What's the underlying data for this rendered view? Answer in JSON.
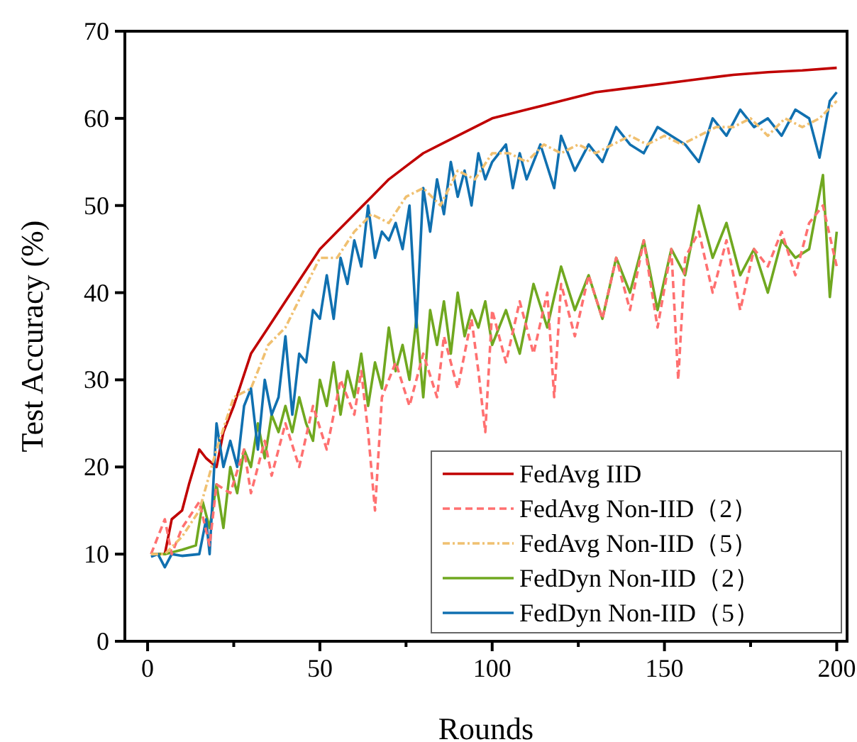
{
  "chart_data": {
    "type": "line",
    "xlabel": "Rounds",
    "ylabel": "Test Accuracy (%)",
    "xlim": [
      -6.6,
      203
    ],
    "ylim": [
      0,
      70
    ],
    "xticks": [
      0,
      {
        "value": 25,
        "label": null
      },
      50,
      {
        "value": 75,
        "label": null
      },
      100,
      {
        "value": 125,
        "label": null
      },
      150,
      {
        "value": 175,
        "label": null
      },
      200
    ],
    "yticks": [
      0,
      10,
      20,
      30,
      40,
      50,
      60,
      70
    ],
    "grid": false,
    "legend": "bottom right",
    "marker": "none",
    "series": [
      {
        "name": "FedAvg IID",
        "color": "#c00000",
        "line_style": "solid",
        "x": [
          1,
          5,
          7,
          10,
          12,
          15,
          17,
          20,
          22,
          25,
          30,
          35,
          40,
          45,
          50,
          55,
          60,
          65,
          70,
          75,
          80,
          85,
          90,
          95,
          100,
          110,
          120,
          130,
          140,
          150,
          160,
          170,
          180,
          190,
          200
        ],
        "values": [
          10,
          10,
          14,
          15,
          18,
          22,
          21,
          20,
          24,
          27,
          33,
          36,
          39,
          42,
          45,
          47,
          49,
          51,
          53,
          54.5,
          56,
          57,
          58,
          59,
          60,
          61,
          62,
          63,
          63.5,
          64,
          64.5,
          65,
          65.3,
          65.5,
          65.8
        ]
      },
      {
        "name": "FedAvg Non-IID（2）",
        "color": "#ff7070",
        "line_style": "dashed",
        "x": [
          1,
          5,
          7,
          10,
          15,
          18,
          20,
          24,
          28,
          30,
          34,
          36,
          40,
          44,
          48,
          52,
          56,
          60,
          62,
          64,
          66,
          68,
          72,
          76,
          80,
          84,
          86,
          90,
          94,
          96,
          98,
          100,
          104,
          108,
          112,
          116,
          118,
          120,
          124,
          128,
          132,
          136,
          140,
          144,
          148,
          152,
          154,
          156,
          160,
          164,
          168,
          172,
          176,
          180,
          184,
          188,
          192,
          196,
          200
        ],
        "values": [
          10,
          14,
          10,
          13,
          16,
          11,
          18,
          17,
          22,
          17,
          23,
          19,
          25,
          20,
          27,
          22,
          30,
          26,
          31,
          24,
          15,
          28,
          32,
          27,
          33,
          28,
          35,
          29,
          37,
          31,
          24,
          38,
          32,
          39,
          33,
          40,
          28,
          41,
          35,
          42,
          37,
          44,
          38,
          46,
          36,
          45,
          30,
          44,
          47,
          40,
          46,
          38,
          45,
          43,
          47,
          42,
          48,
          50,
          43
        ]
      },
      {
        "name": "FedAvg Non-IID（5）",
        "color": "#f0c070",
        "line_style": "dashdot",
        "x": [
          1,
          5,
          10,
          15,
          20,
          25,
          30,
          35,
          40,
          45,
          50,
          55,
          60,
          65,
          70,
          75,
          80,
          85,
          90,
          95,
          100,
          105,
          110,
          115,
          120,
          125,
          130,
          135,
          140,
          145,
          150,
          155,
          160,
          165,
          170,
          175,
          180,
          185,
          190,
          195,
          200
        ],
        "values": [
          10,
          10,
          12,
          15,
          22,
          28,
          29,
          34,
          36,
          40,
          44,
          44,
          47,
          49,
          48,
          51,
          52,
          50,
          54,
          53,
          56,
          56,
          55,
          57,
          56,
          57,
          56,
          57,
          58,
          57,
          58,
          57,
          58,
          59,
          59,
          60,
          58,
          60,
          59,
          60,
          62
        ]
      },
      {
        "name": "FedDyn Non-IID（2）",
        "color": "#70a820",
        "line_style": "solid",
        "x": [
          1,
          5,
          10,
          14,
          16,
          18,
          20,
          22,
          24,
          26,
          28,
          30,
          32,
          34,
          36,
          38,
          40,
          42,
          44,
          46,
          48,
          50,
          52,
          54,
          56,
          58,
          60,
          62,
          64,
          66,
          68,
          70,
          72,
          74,
          76,
          78,
          80,
          82,
          84,
          86,
          88,
          90,
          92,
          94,
          96,
          98,
          100,
          104,
          108,
          112,
          116,
          120,
          124,
          128,
          132,
          136,
          140,
          144,
          148,
          152,
          156,
          160,
          164,
          168,
          172,
          176,
          180,
          184,
          188,
          192,
          196,
          198,
          200
        ],
        "values": [
          10,
          10,
          10.5,
          11,
          16,
          13,
          18,
          13,
          20,
          17,
          22,
          20,
          25,
          21,
          26,
          24,
          27,
          24,
          28,
          25,
          23,
          30,
          27,
          32,
          26,
          31,
          28,
          33,
          27,
          32,
          29,
          36,
          31,
          34,
          30,
          37,
          28,
          38,
          34,
          39,
          33,
          40,
          35,
          38,
          36,
          39,
          34,
          38,
          33,
          41,
          36,
          43,
          38,
          42,
          37,
          44,
          40,
          46,
          38,
          45,
          42,
          50,
          44,
          48,
          42,
          45,
          40,
          46,
          44,
          45,
          53.5,
          39.5,
          47
        ]
      },
      {
        "name": "FedDyn Non-IID（5）",
        "color": "#1070b0",
        "line_style": "solid",
        "x": [
          1,
          3,
          5,
          7,
          10,
          15,
          17,
          18,
          20,
          22,
          24,
          26,
          28,
          30,
          32,
          34,
          36,
          38,
          40,
          42,
          44,
          46,
          48,
          50,
          52,
          54,
          56,
          58,
          60,
          62,
          64,
          66,
          68,
          70,
          72,
          74,
          76,
          78,
          80,
          82,
          84,
          86,
          88,
          90,
          92,
          94,
          96,
          98,
          100,
          104,
          106,
          108,
          110,
          114,
          118,
          120,
          124,
          128,
          132,
          136,
          140,
          144,
          148,
          152,
          156,
          160,
          164,
          168,
          172,
          176,
          180,
          184,
          188,
          192,
          195,
          198,
          200
        ],
        "values": [
          9.7,
          10,
          8.5,
          10,
          9.8,
          10,
          14,
          10,
          25,
          20,
          23,
          20,
          27,
          29,
          22,
          30,
          26,
          28,
          35,
          26,
          33,
          32,
          38,
          37,
          42,
          37,
          44,
          41,
          46,
          43,
          50,
          44,
          47,
          46,
          48,
          45,
          50,
          36,
          52,
          47,
          53,
          49,
          55,
          51,
          54,
          50,
          56,
          53,
          55,
          57,
          52,
          56,
          53,
          57,
          52,
          58,
          54,
          57,
          55,
          59,
          57,
          56,
          59,
          58,
          57,
          55,
          60,
          58,
          61,
          59,
          60,
          58,
          61,
          60,
          55.5,
          62,
          63
        ]
      }
    ]
  }
}
